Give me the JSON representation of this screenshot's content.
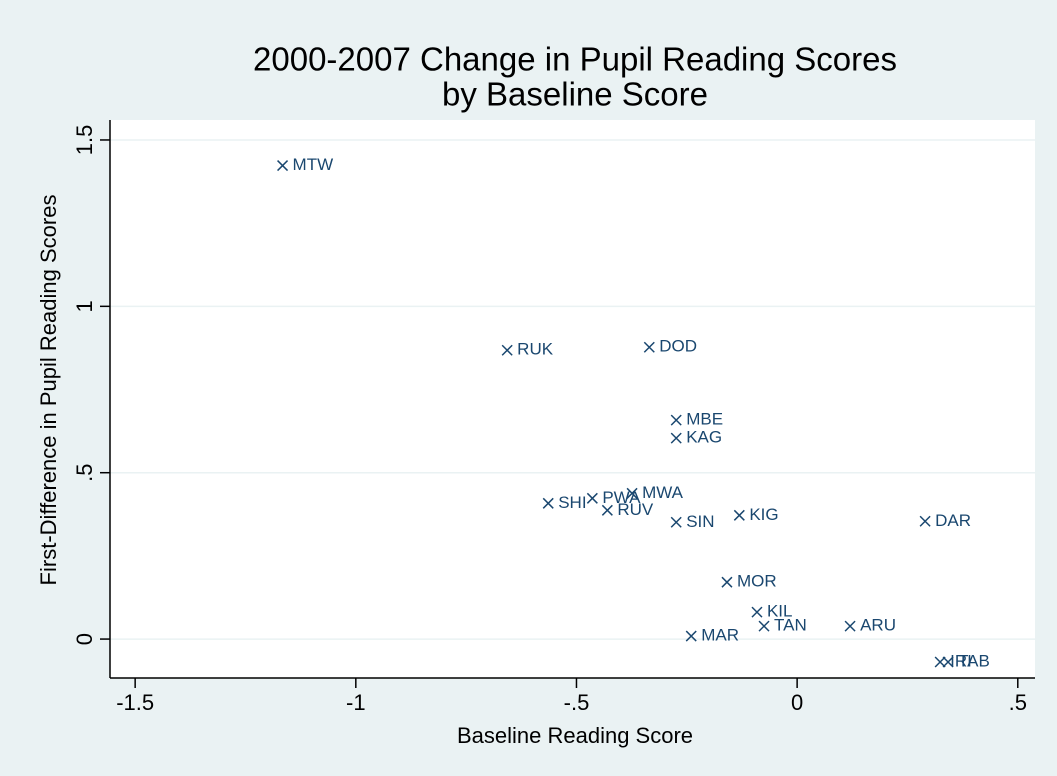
{
  "chart_data": {
    "type": "scatter",
    "title": [
      "2000-2007 Change in Pupil Reading Scores",
      "by Baseline Score"
    ],
    "x_label": "Baseline Reading Score",
    "y_label": "First-Difference in Pupil Reading Scores",
    "color": "#1a476f",
    "grid": true,
    "xlim": [
      -1.557,
      0.539
    ],
    "ylim": [
      -0.117,
      1.56
    ],
    "xticks": [
      -1.5,
      -1,
      {
        "value": -0.5,
        "label": "-.5"
      },
      0,
      {
        "value": 0.5,
        "label": ".5"
      }
    ],
    "yticks": [
      0,
      {
        "value": 0.5,
        "label": ".5"
      },
      1,
      1.5
    ],
    "labels": [
      "MTW",
      "RUK",
      "DOD",
      "MBE",
      "KAG",
      "SHI",
      "PWA",
      "MWA",
      "RUV",
      "SIN",
      "KIG",
      "DAR",
      "MOR",
      "KIL",
      "TAN",
      "ARU",
      "MAR",
      "IRI",
      "TAB"
    ],
    "x": [
      -1.166,
      -0.657,
      -0.335,
      -0.274,
      -0.274,
      -0.564,
      -0.464,
      -0.374,
      -0.43,
      -0.274,
      -0.131,
      0.29,
      -0.159,
      -0.091,
      -0.075,
      0.12,
      -0.24,
      0.324,
      0.342
    ],
    "values": [
      1.423,
      0.868,
      0.877,
      0.658,
      0.604,
      0.408,
      0.423,
      0.438,
      0.387,
      0.351,
      0.372,
      0.354,
      0.171,
      0.081,
      0.039,
      0.039,
      0.009,
      -0.069,
      -0.069
    ]
  }
}
